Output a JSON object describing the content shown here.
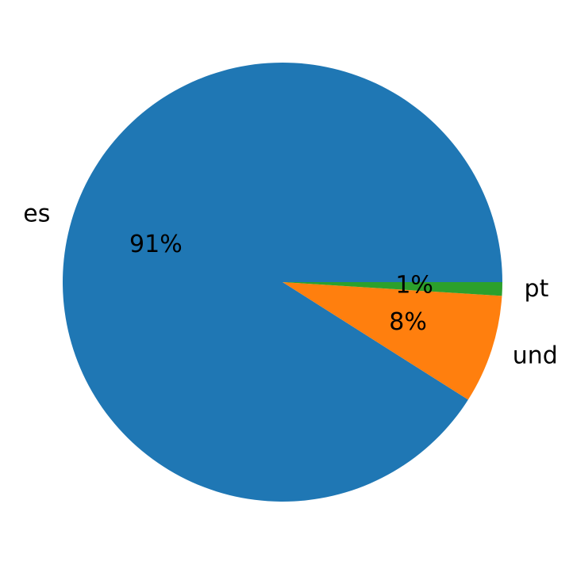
{
  "chart_data": {
    "type": "pie",
    "categories": [
      "es",
      "und",
      "pt"
    ],
    "values": [
      91,
      8,
      1
    ],
    "value_labels": [
      "91%",
      "8%",
      "1%"
    ],
    "colors": [
      "#1f77b4",
      "#ff7f0e",
      "#2ca02c"
    ]
  }
}
